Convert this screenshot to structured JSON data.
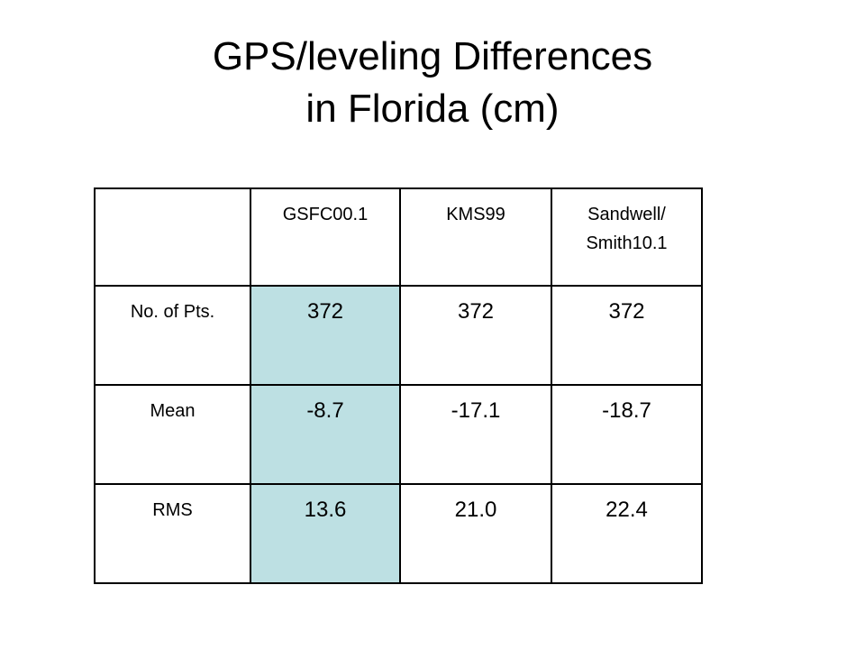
{
  "slide": {
    "title_line1": "GPS/leveling Differences",
    "title_line2": "in Florida (cm)"
  },
  "table": {
    "columns": [
      "",
      "GSFC00.1",
      "KMS99",
      "Sandwell/\nSmith10.1"
    ],
    "columns_display": {
      "c1": "GSFC00.1",
      "c2": "KMS99",
      "c3_line1": "Sandwell/",
      "c3_line2": "Smith10.1"
    },
    "rows": [
      {
        "label": "No. of Pts.",
        "values": [
          "372",
          "372",
          "372"
        ]
      },
      {
        "label": "Mean",
        "values": [
          "-8.7",
          "-17.1",
          "-18.7"
        ]
      },
      {
        "label": "RMS",
        "values": [
          "13.6",
          "21.0",
          "22.4"
        ]
      }
    ],
    "highlight_column": "GSFC00.1",
    "highlight_color": "#bde0e3"
  }
}
